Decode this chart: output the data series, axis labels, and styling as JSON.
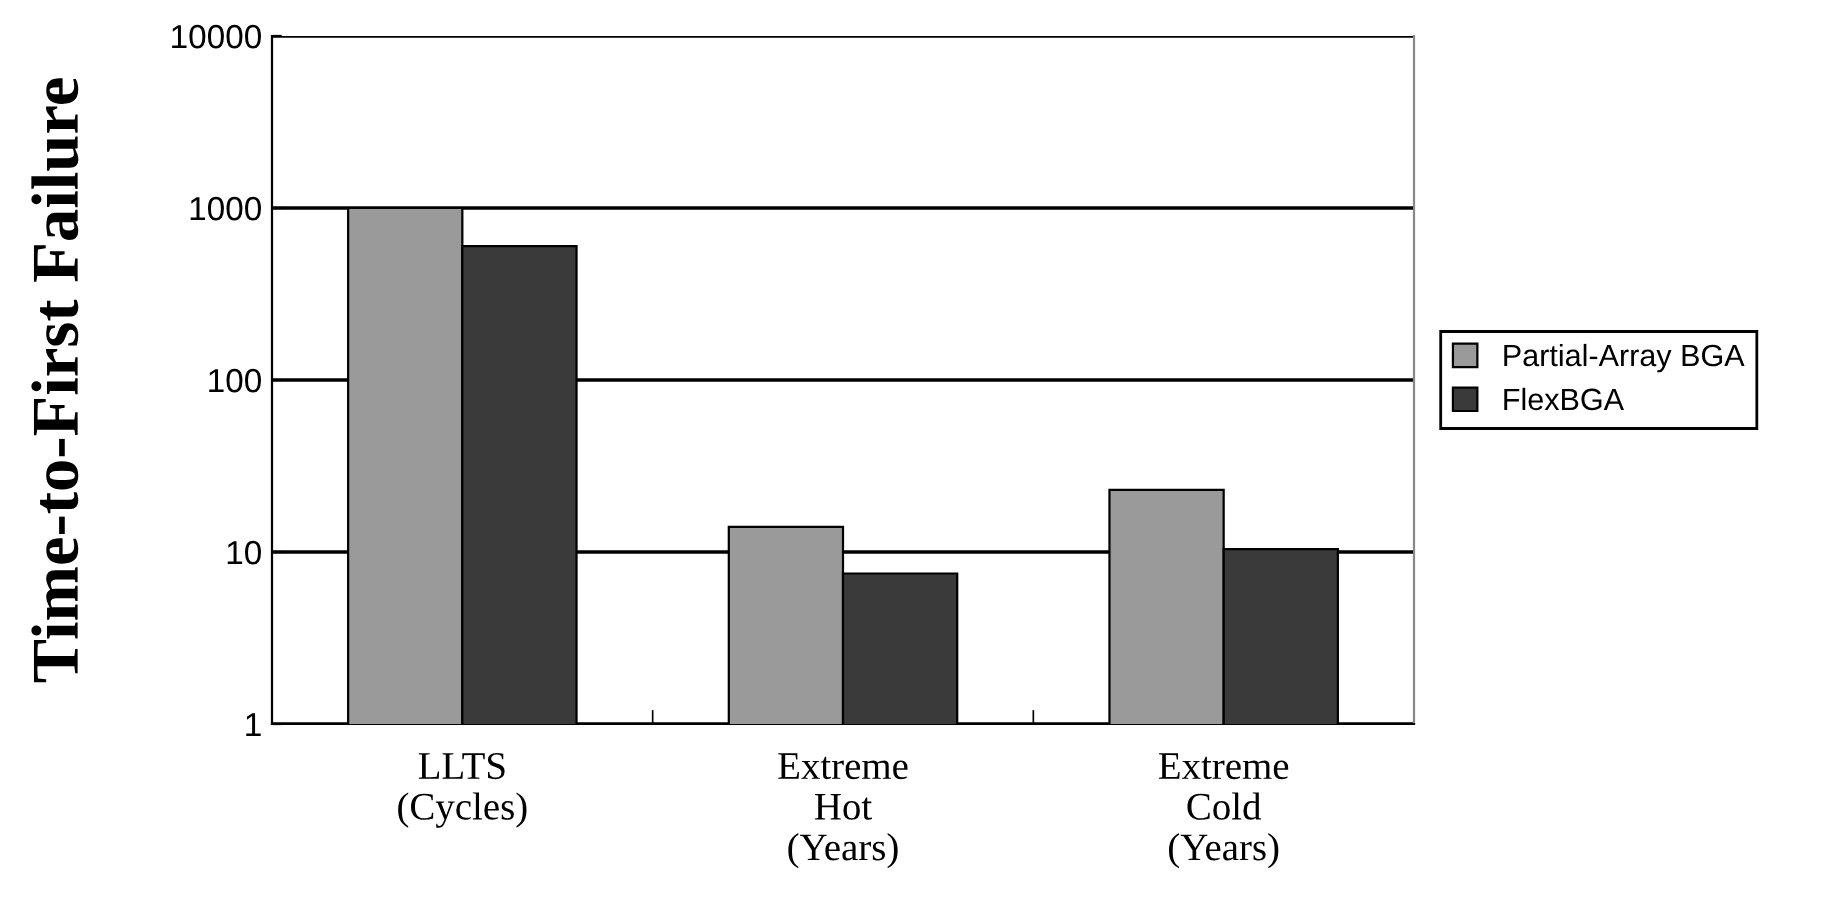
{
  "chart_data": {
    "type": "bar",
    "ylabel": "Time-to-First Failure",
    "categories": [
      "LLTS\n(Cycles)",
      "Extreme\nHot\n(Years)",
      "Extreme\nCold\n(Years)"
    ],
    "series": [
      {
        "name": "Partial-Array BGA",
        "color": "#9a9a9a",
        "values": [
          1000,
          14,
          23
        ]
      },
      {
        "name": "FlexBGA",
        "color": "#3a3a3a",
        "values": [
          600,
          7.5,
          10.4
        ]
      }
    ],
    "log": true,
    "ylim": [
      1,
      10000
    ],
    "yticks": [
      1,
      10,
      100,
      1000,
      10000
    ],
    "grid": "y",
    "legend": "right"
  }
}
